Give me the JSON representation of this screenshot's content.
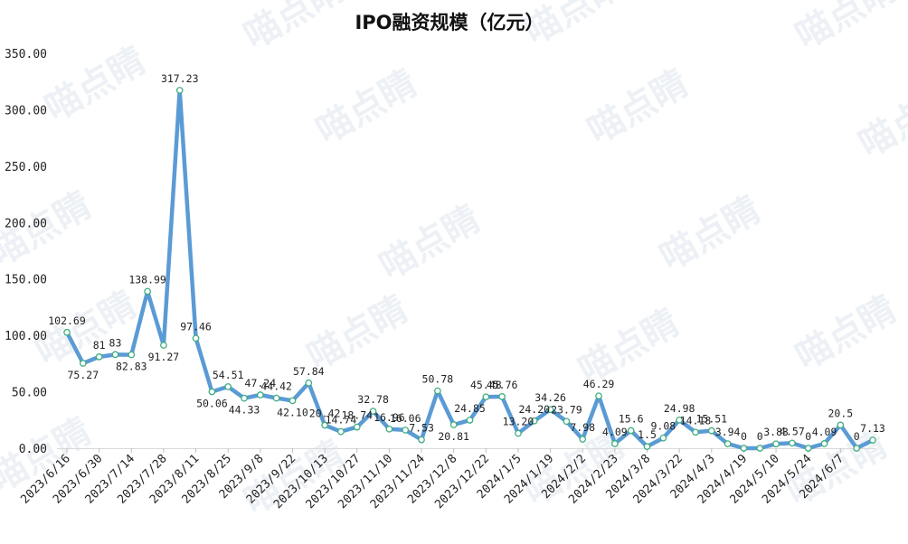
{
  "watermark_text": "喵点睛",
  "chart_data": {
    "type": "line",
    "title": "IPO融资规模（亿元）",
    "xlabel": "",
    "ylabel": "",
    "ylim": [
      0,
      350
    ],
    "yticks": [
      "0.00",
      "50.00",
      "100.00",
      "150.00",
      "200.00",
      "250.00",
      "300.00",
      "350.00"
    ],
    "line_color": "#5b9bd5",
    "marker_edge_color": "#3fae7e",
    "x_tick_labels": [
      {
        "index": 0,
        "label": "2023/6/16"
      },
      {
        "index": 2,
        "label": "2023/6/30"
      },
      {
        "index": 4,
        "label": "2023/7/14"
      },
      {
        "index": 6,
        "label": "2023/7/28"
      },
      {
        "index": 8,
        "label": "2023/8/11"
      },
      {
        "index": 10,
        "label": "2023/8/25"
      },
      {
        "index": 12,
        "label": "2023/9/8"
      },
      {
        "index": 14,
        "label": "2023/9/22"
      },
      {
        "index": 16,
        "label": "2023/10/13"
      },
      {
        "index": 18,
        "label": "2023/10/27"
      },
      {
        "index": 20,
        "label": "2023/11/10"
      },
      {
        "index": 22,
        "label": "2023/11/24"
      },
      {
        "index": 24,
        "label": "2023/12/8"
      },
      {
        "index": 26,
        "label": "2023/12/22"
      },
      {
        "index": 28,
        "label": "2024/1/5"
      },
      {
        "index": 30,
        "label": "2024/1/19"
      },
      {
        "index": 32,
        "label": "2024/2/2"
      },
      {
        "index": 34,
        "label": "2024/2/23"
      },
      {
        "index": 36,
        "label": "2024/3/8"
      },
      {
        "index": 38,
        "label": "2024/3/22"
      },
      {
        "index": 40,
        "label": "2024/4/3"
      },
      {
        "index": 42,
        "label": "2024/4/19"
      },
      {
        "index": 44,
        "label": "2024/5/10"
      },
      {
        "index": 46,
        "label": "2024/5/24"
      },
      {
        "index": 48,
        "label": "2024/6/7"
      }
    ],
    "series": [
      {
        "name": "IPO融资规模",
        "values": [
          102.69,
          75.27,
          81,
          83,
          82.83,
          138.99,
          91.27,
          317.23,
          97.46,
          50.06,
          54.51,
          44.33,
          47.24,
          44.42,
          42.1,
          57.84,
          20.42,
          14.74,
          18.74,
          32.78,
          16.96,
          16.06,
          7.53,
          50.78,
          20.81,
          24.85,
          45.48,
          45.76,
          13.2,
          24.2,
          34.26,
          23.79,
          7.98,
          46.29,
          4.09,
          15.6,
          1.5,
          9.08,
          24.98,
          14.18,
          15.51,
          3.94,
          0,
          0,
          3.83,
          4.57,
          0,
          4.09,
          20.5,
          0,
          7.13
        ],
        "labels": [
          "102.69",
          "75.27",
          "81",
          "83",
          "82.83",
          "138.99",
          "91.27",
          "317.23",
          "97.46",
          "50.06",
          "54.51",
          "44.33",
          "47.24",
          "44.42",
          "42.10",
          "57.84",
          "20.42",
          "14.74",
          "18.74",
          "32.78",
          "16.96",
          "16.06",
          "7.53",
          "50.78",
          "20.81",
          "24.85",
          "45.48",
          "45.76",
          "13.20",
          "24.20",
          "34.26",
          "23.79",
          "7.98",
          "46.29",
          "4.09",
          "15.6",
          "1.5",
          "9.08",
          "24.98",
          "14.18",
          "15.51",
          "3.94",
          "0",
          "0",
          "3.83",
          "4.57",
          "0",
          "4.09",
          "20.5",
          "0",
          "7.13"
        ]
      }
    ]
  }
}
